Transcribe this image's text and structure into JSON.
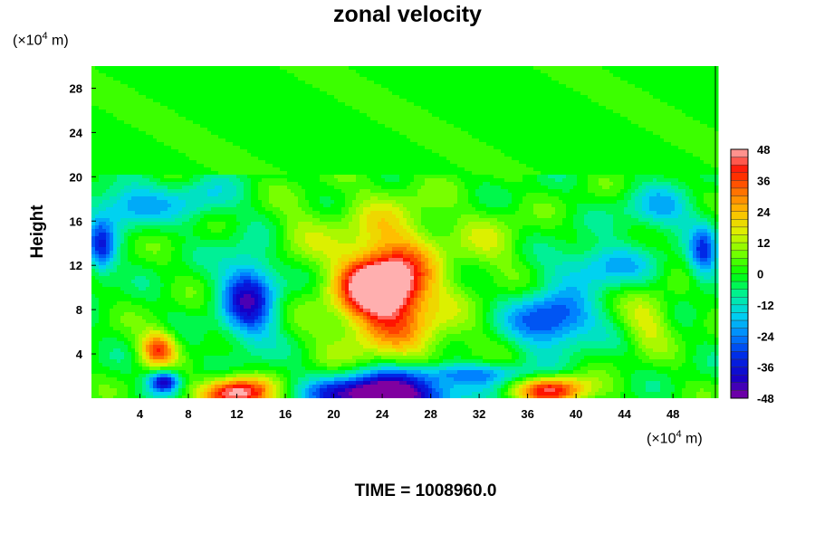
{
  "chart_data": {
    "type": "heatmap",
    "title": "zonal velocity",
    "ylabel": "Height",
    "xlabel": "",
    "x_unit": {
      "base": "(×10",
      "exp": "4",
      "rest": " m)"
    },
    "y_unit": {
      "base": "(×10",
      "exp": "4",
      "rest": " m)"
    },
    "xlim": [
      0,
      51.5
    ],
    "ylim": [
      0,
      30
    ],
    "x_ticks": [
      4,
      8,
      12,
      16,
      20,
      24,
      28,
      32,
      36,
      40,
      44,
      48
    ],
    "y_ticks": [
      4,
      8,
      12,
      16,
      20,
      24,
      28
    ],
    "colorbar": {
      "ticks": [
        48,
        36,
        24,
        12,
        0,
        -12,
        -24,
        -36,
        -48
      ],
      "range": [
        -48,
        48
      ]
    },
    "features": [
      {
        "x": 24,
        "y": 10,
        "sx": 3.2,
        "sy": 2.6,
        "value": 52
      },
      {
        "x": 24.5,
        "y": 12.5,
        "sx": 4.5,
        "sy": 5.5,
        "value": 24
      },
      {
        "x": 25,
        "y": 6,
        "sx": 5.5,
        "sy": 3,
        "value": 18
      },
      {
        "x": 13,
        "y": 9,
        "sx": 2.3,
        "sy": 4,
        "value": -38
      },
      {
        "x": 38,
        "y": 7,
        "sx": 3.5,
        "sy": 2.5,
        "value": -34
      },
      {
        "x": 42,
        "y": 12,
        "sx": 4,
        "sy": 2,
        "value": -20
      },
      {
        "x": 24,
        "y": 0.4,
        "sx": 5.5,
        "sy": 1.6,
        "value": -60
      },
      {
        "x": 12,
        "y": 0.5,
        "sx": 2.8,
        "sy": 1.4,
        "value": 52
      },
      {
        "x": 38,
        "y": 0.8,
        "sx": 3,
        "sy": 1.4,
        "value": 42
      },
      {
        "x": 5.5,
        "y": 4.5,
        "sx": 1.5,
        "sy": 1.6,
        "value": 36
      },
      {
        "x": 6,
        "y": 1.5,
        "sx": 1.3,
        "sy": 1,
        "value": -42
      },
      {
        "x": 3,
        "y": 17.5,
        "sx": 3,
        "sy": 2,
        "value": -22
      },
      {
        "x": 9,
        "y": 18,
        "sx": 3,
        "sy": 2,
        "value": -14
      },
      {
        "x": 47,
        "y": 17,
        "sx": 3,
        "sy": 2,
        "value": -18
      },
      {
        "x": 0.8,
        "y": 13.5,
        "sx": 1.2,
        "sy": 2.5,
        "value": -30
      },
      {
        "x": 50.5,
        "y": 13,
        "sx": 1.2,
        "sy": 2.5,
        "value": -28
      },
      {
        "x": 46,
        "y": 7,
        "sx": 2,
        "sy": 2.5,
        "value": 16
      },
      {
        "x": 33,
        "y": 14,
        "sx": 3,
        "sy": 3,
        "value": 10
      },
      {
        "x": 31,
        "y": 2.2,
        "sx": 7,
        "sy": 1,
        "value": -22
      },
      {
        "x": 17,
        "y": 15,
        "sx": 2.5,
        "sy": 3,
        "value": 8
      }
    ],
    "time_label": "TIME = 1008960.0"
  }
}
